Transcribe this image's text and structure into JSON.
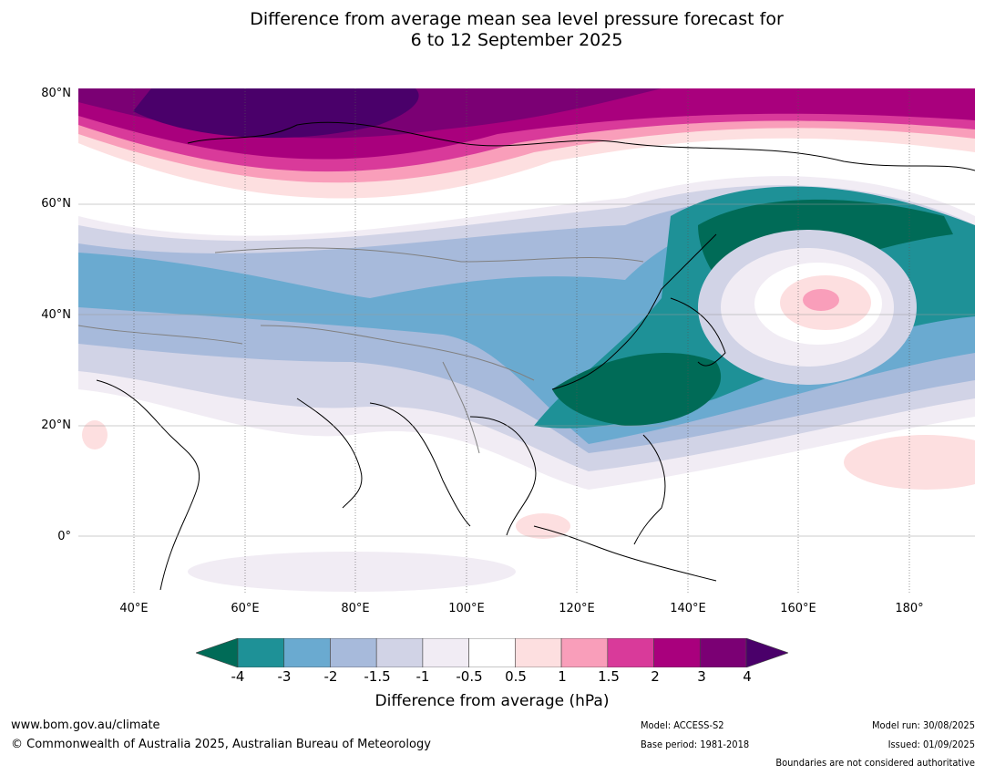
{
  "title": {
    "line1": "Difference from average mean sea level pressure forecast for",
    "line2": "6 to 12 September 2025"
  },
  "map": {
    "lat_labels": [
      "80°N",
      "60°N",
      "40°N",
      "20°N",
      "0°"
    ],
    "lon_labels": [
      "40°E",
      "60°E",
      "80°E",
      "100°E",
      "120°E",
      "140°E",
      "160°E",
      "180°"
    ]
  },
  "legend": {
    "ticks": [
      "-4",
      "-3",
      "-2",
      "-1.5",
      "-1",
      "-0.5",
      "0.5",
      "1",
      "1.5",
      "2",
      "3",
      "4"
    ],
    "colors": [
      "#006b57",
      "#1e9197",
      "#6aaad0",
      "#a7badb",
      "#d1d3e6",
      "#f1ecf4",
      "#ffffff",
      "#fddfe0",
      "#f99eba",
      "#d93a9a",
      "#a9007d",
      "#7b0074",
      "#4a006a"
    ],
    "label": "Difference from average (hPa)"
  },
  "footer": {
    "url": "www.bom.gov.au/climate",
    "copyright": "© Commonwealth of Australia 2025, Australian Bureau of Meteorology",
    "model": "Model: ACCESS-S2",
    "base_period": "Base period: 1981-2018",
    "model_run": "Model run: 30/08/2025",
    "issued": "Issued: 01/09/2025",
    "boundaries_note": "Boundaries are not considered authoritative"
  }
}
